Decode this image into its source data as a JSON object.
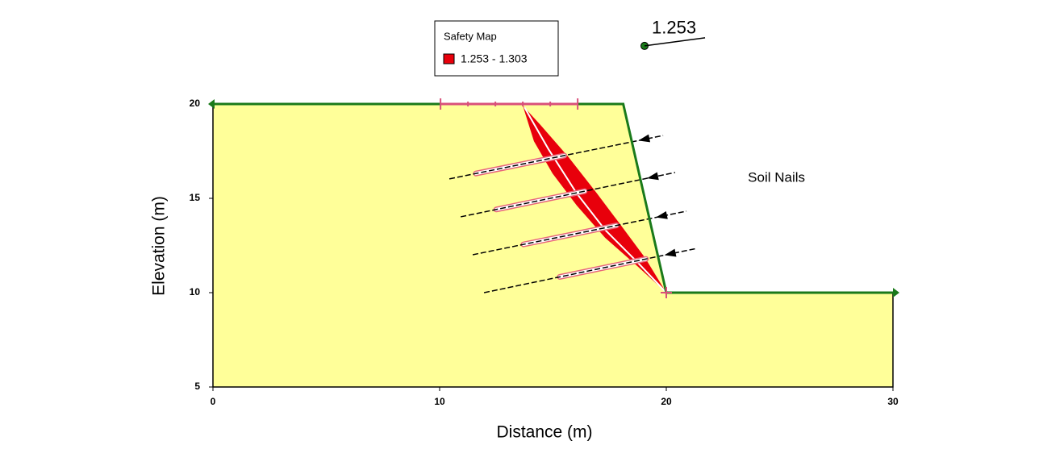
{
  "chart_data": {
    "type": "slope",
    "xlabel": "Distance (m)",
    "ylabel": "Elevation (m)",
    "xlim": [
      0,
      30
    ],
    "ylim": [
      5,
      20
    ],
    "xticks": [
      0,
      10,
      20,
      30
    ],
    "yticks": [
      5,
      10,
      15,
      20
    ],
    "legend": {
      "title": "Safety Map",
      "entries": [
        {
          "label": "1.253 - 1.303",
          "color": "#e8000b"
        }
      ]
    },
    "region": {
      "x": [
        0,
        18.1,
        20,
        30,
        30,
        0
      ],
      "y": [
        20,
        20,
        10,
        10,
        5,
        5
      ],
      "color": "#ffff99"
    },
    "ground_surface": {
      "x": [
        0,
        18.1,
        20,
        30
      ],
      "y": [
        20,
        20,
        10,
        10
      ],
      "color": "#1a7a1a"
    },
    "safety_zone": {
      "x": [
        13.67,
        14.16,
        14.98,
        16.05,
        17.3,
        18.72,
        20,
        19.07,
        18.01,
        16.94,
        15.69,
        14.45
      ],
      "y": [
        19.91,
        18.03,
        16.32,
        14.62,
        12.91,
        11.41,
        10,
        11.84,
        13.55,
        15.26,
        17.18,
        18.89
      ],
      "color": "#e8000b"
    },
    "slip_surface": {
      "x": [
        13.74,
        14.8,
        16.05,
        17.3,
        18.72,
        20
      ],
      "y": [
        19.83,
        17.61,
        15.26,
        13.33,
        11.62,
        10
      ]
    },
    "nails": [
      {
        "x": [
          10.43,
          19.86
        ],
        "y": [
          16.03,
          18.33
        ],
        "bond_x": [
          11.6,
          15.5
        ]
      },
      {
        "x": [
          10.93,
          20.39
        ],
        "y": [
          14.02,
          16.37
        ],
        "bond_x": [
          12.5,
          16.4
        ]
      },
      {
        "x": [
          11.46,
          20.89
        ],
        "y": [
          12.01,
          14.32
        ],
        "bond_x": [
          13.7,
          17.8
        ]
      },
      {
        "x": [
          11.96,
          21.36
        ],
        "y": [
          10.0,
          12.35
        ],
        "bond_x": [
          15.3,
          19.1
        ]
      }
    ],
    "entry_range": {
      "x": [
        10.04,
        16.09
      ],
      "y": 20
    },
    "exit_point": {
      "x": 20,
      "y": 10
    },
    "critical": {
      "x": 19.04,
      "y": 23.08,
      "factor_of_safety": 1.253
    },
    "annotation": {
      "text": "Soil Nails",
      "x": 23.6,
      "y": 16.07
    }
  }
}
